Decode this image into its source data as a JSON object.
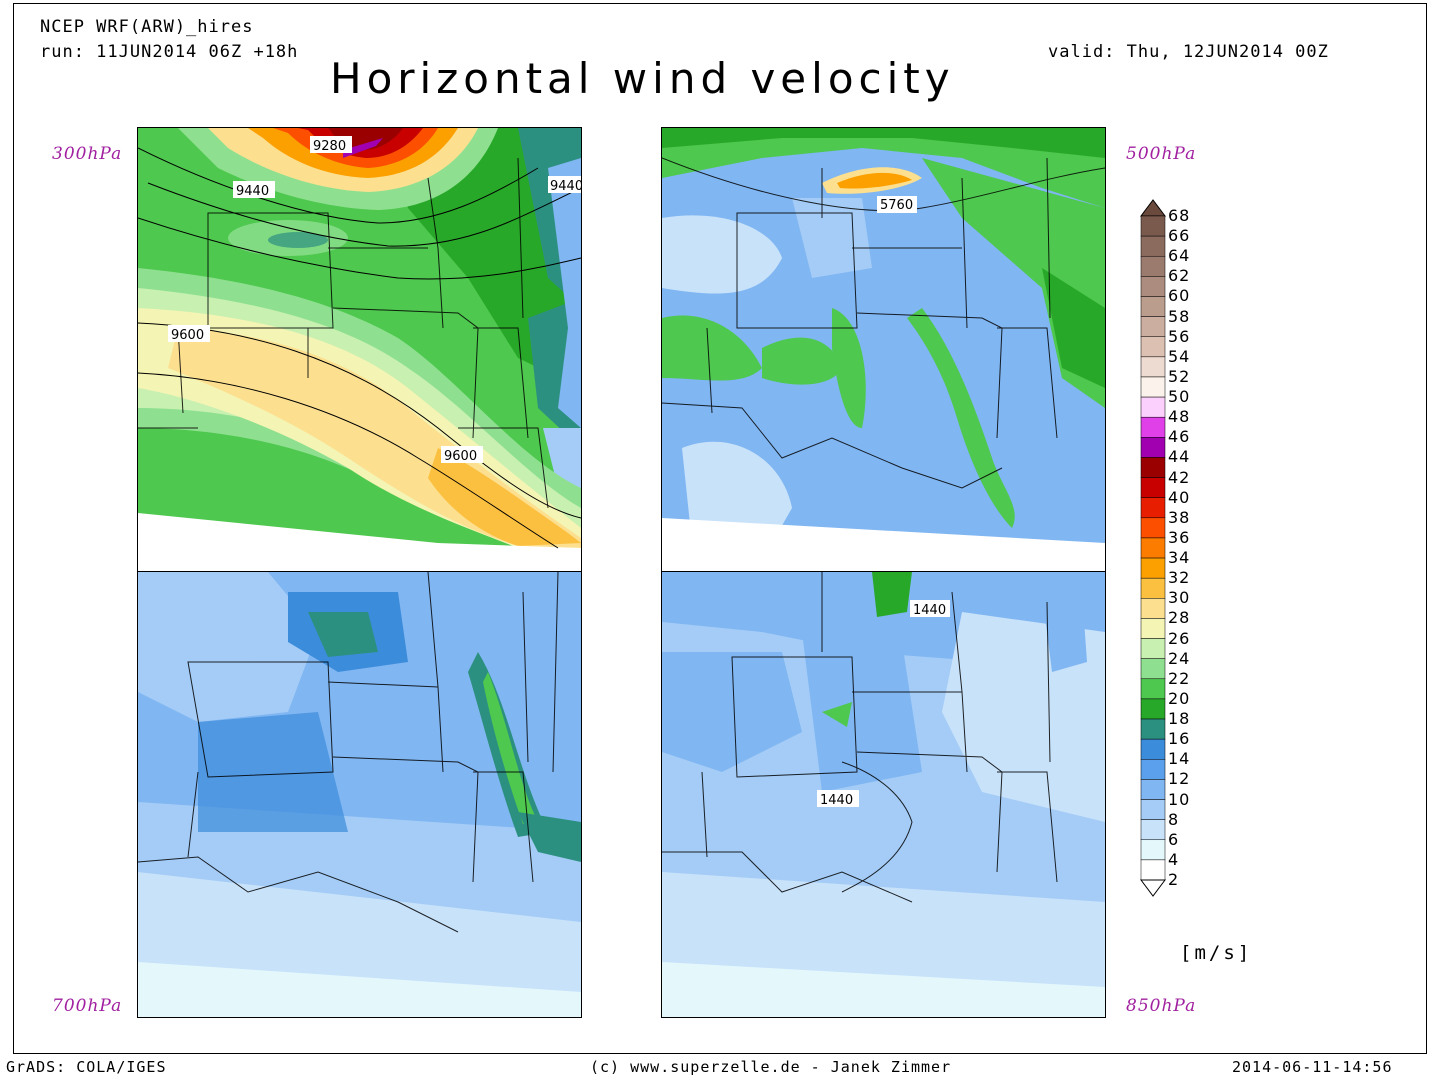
{
  "header": {
    "model": "NCEP WRF(ARW)_hires",
    "run": "run: 11JUN2014 06Z +18h",
    "valid": "valid: Thu, 12JUN2014 00Z",
    "title": "Horizontal wind velocity"
  },
  "panels": [
    {
      "id": "p300",
      "level": "300hPa",
      "contour_labels": [
        "9280",
        "9440",
        "9440",
        "9600",
        "9600"
      ]
    },
    {
      "id": "p500",
      "level": "500hPa",
      "contour_labels": [
        "5760"
      ]
    },
    {
      "id": "p700",
      "level": "700hPa",
      "contour_labels": []
    },
    {
      "id": "p850",
      "level": "850hPa",
      "contour_labels": [
        "1440",
        "1440"
      ]
    }
  ],
  "colorbar": {
    "units": "[m/s]",
    "ticks": [
      "68",
      "66",
      "64",
      "62",
      "60",
      "58",
      "56",
      "54",
      "52",
      "50",
      "48",
      "46",
      "44",
      "42",
      "40",
      "38",
      "36",
      "34",
      "32",
      "30",
      "28",
      "26",
      "24",
      "22",
      "20",
      "18",
      "16",
      "14",
      "12",
      "10",
      "8",
      "6",
      "4",
      "2"
    ],
    "colors": [
      "#6b4a3e",
      "#7b5a4e",
      "#8b6b5e",
      "#9b7b6e",
      "#ab8c7e",
      "#bb9d8e",
      "#ccaea0",
      "#dcc0b2",
      "#eddad0",
      "#fbf2ec",
      "#fcd0fc",
      "#e040e8",
      "#a000b0",
      "#9a0000",
      "#c80000",
      "#e81e00",
      "#fc5000",
      "#fc7c00",
      "#fca000",
      "#fcc040",
      "#fce090",
      "#f4f4b4",
      "#c8f0b0",
      "#8ee090",
      "#4ec84e",
      "#28a828",
      "#2c9080",
      "#3c8cdc",
      "#5aa0ec",
      "#80b6f2",
      "#a4ccf6",
      "#c8e2fa",
      "#e4f8fc",
      "#ffffff"
    ]
  },
  "footer": {
    "left": "GrADS: COLA/IGES",
    "center": "(c) www.superzelle.de - Janek Zimmer",
    "right": "2014-06-11-14:56"
  }
}
